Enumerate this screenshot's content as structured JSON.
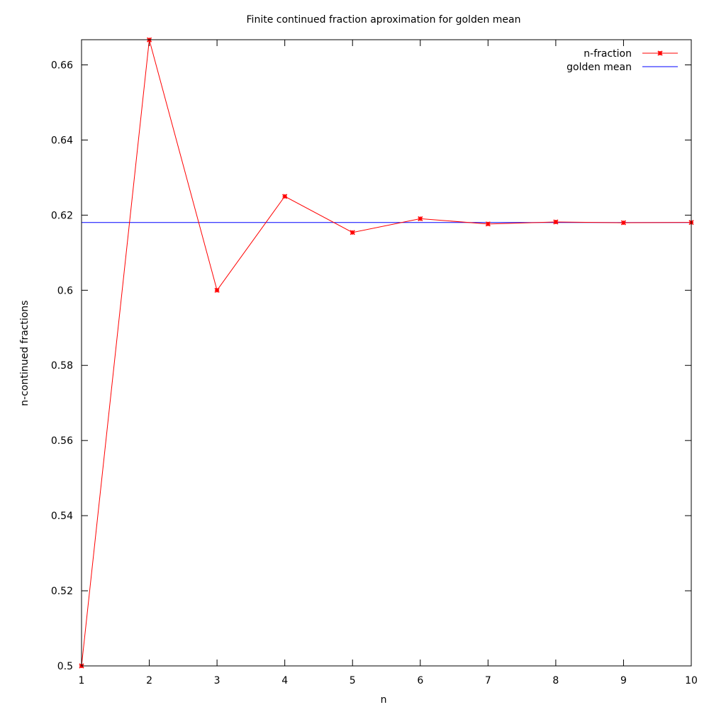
{
  "chart_data": {
    "type": "line",
    "title": "Finite continued fraction aproximation for golden mean",
    "xlabel": "n",
    "ylabel": "n-continued fractions",
    "xlim": [
      1,
      10
    ],
    "ylim": [
      0.5,
      0.6667
    ],
    "x_ticks": [
      1,
      2,
      3,
      4,
      5,
      6,
      7,
      8,
      9,
      10
    ],
    "y_ticks": [
      0.5,
      0.52,
      0.54,
      0.56,
      0.58,
      0.6,
      0.62,
      0.64,
      0.66
    ],
    "x_tick_labels": [
      "1",
      "2",
      "3",
      "4",
      "5",
      "6",
      "7",
      "8",
      "9",
      "10"
    ],
    "y_tick_labels": [
      "0.5",
      "0.52",
      "0.54",
      "0.56",
      "0.58",
      "0.6",
      "0.62",
      "0.64",
      "0.66"
    ],
    "grid": false,
    "legend_position": "top-right",
    "x": [
      1,
      2,
      3,
      4,
      5,
      6,
      7,
      8,
      9,
      10
    ],
    "series": [
      {
        "name": "n-fraction",
        "color": "#ff0000",
        "marker": "star",
        "values": [
          0.5,
          0.666667,
          0.6,
          0.625,
          0.615385,
          0.619048,
          0.617647,
          0.618182,
          0.617978,
          0.618056
        ]
      },
      {
        "name": "golden mean",
        "color": "#0000ff",
        "marker": "none",
        "constant": 0.618034
      }
    ]
  }
}
